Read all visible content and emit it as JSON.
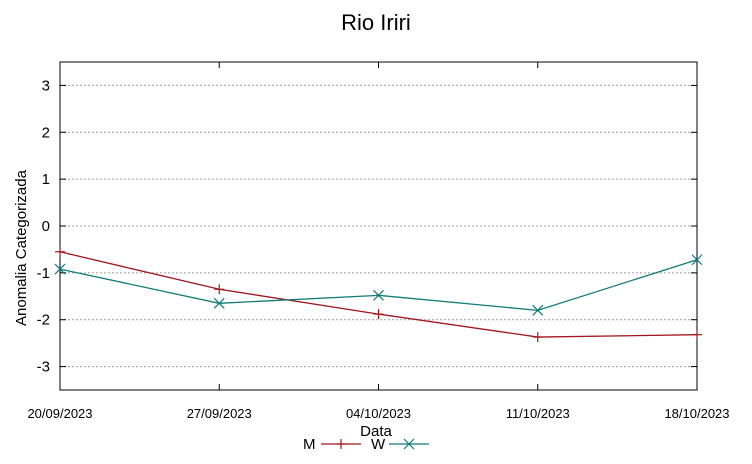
{
  "chart_data": {
    "type": "line",
    "title": "Rio Iriri",
    "xlabel": "Data",
    "ylabel": "Anomalia Categorizada",
    "x": [
      "20/09/2023",
      "27/09/2023",
      "04/10/2023",
      "11/10/2023",
      "18/10/2023"
    ],
    "ylim": [
      -3.5,
      3.5
    ],
    "yticks": [
      -3,
      -2,
      -1,
      0,
      1,
      2,
      3
    ],
    "grid": true,
    "legend": "bottom-center",
    "series": [
      {
        "name": "M",
        "color": "#a0161d",
        "marker": "plus",
        "values": [
          -0.55,
          -1.35,
          -1.88,
          -2.37,
          -2.32
        ]
      },
      {
        "name": "W",
        "color": "#117a7a",
        "marker": "x",
        "values": [
          -0.92,
          -1.65,
          -1.48,
          -1.8,
          -0.72
        ]
      }
    ]
  }
}
